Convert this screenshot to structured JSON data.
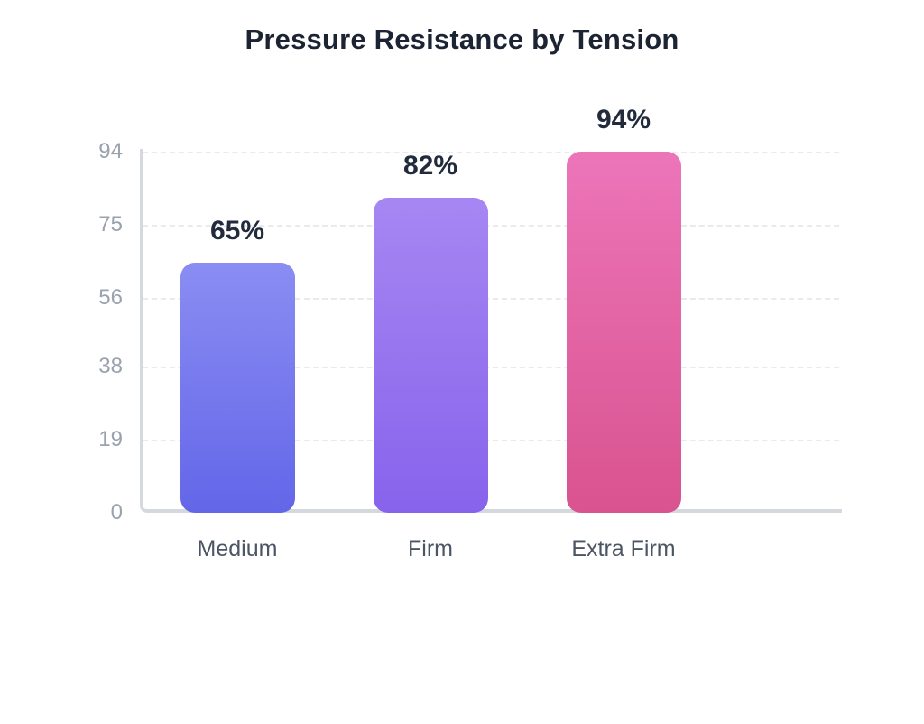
{
  "title": "Pressure Resistance by Tension",
  "colors": {
    "title_text": "#1c2433",
    "value_label_text": "#212b3b",
    "axis_line": "#d5d9de",
    "gridline": "#e8eaee",
    "y_tick_text": "#9aa2af",
    "x_tick_text": "#4b5564",
    "background": "#ffffff"
  },
  "chart_data": {
    "type": "bar",
    "title": "Pressure Resistance by Tension",
    "categories": [
      "Medium",
      "Firm",
      "Extra Firm"
    ],
    "values": [
      65,
      82,
      94
    ],
    "value_labels": [
      "65%",
      "82%",
      "94%"
    ],
    "xlabel": "",
    "ylabel": "",
    "ylim": [
      0,
      94
    ],
    "yticks": [
      0,
      19,
      38,
      56,
      75,
      94
    ],
    "grid": "horizontal-dashed",
    "legend": "none",
    "bar_gradients": [
      {
        "top": "#8a8df2",
        "bottom": "#6366e8"
      },
      {
        "top": "#a687f2",
        "bottom": "#8763ec"
      },
      {
        "top": "#ec75b9",
        "bottom": "#d9538f"
      }
    ]
  }
}
